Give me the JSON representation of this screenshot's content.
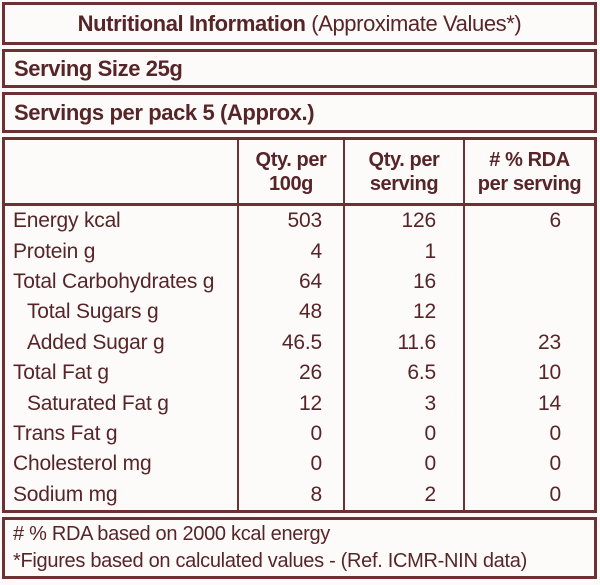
{
  "title": {
    "bold": "Nutritional Information",
    "normal": " (Approximate Values*)"
  },
  "serving_size": "Serving Size 25g",
  "servings_per_pack": "Servings per pack 5 (Approx.)",
  "table": {
    "col_headers": [
      {
        "line1": "Qty. per",
        "line2": "100g"
      },
      {
        "line1": "Qty. per",
        "line2": "serving"
      },
      {
        "line1": "# % RDA",
        "line2": "per serving"
      }
    ],
    "rows": [
      {
        "name": "Energy kcal",
        "indent": false,
        "per100g": "503",
        "per_serving": "126",
        "rda": "6"
      },
      {
        "name": "Protein g",
        "indent": false,
        "per100g": "4",
        "per_serving": "1",
        "rda": ""
      },
      {
        "name": "Total Carbohydrates g",
        "indent": false,
        "per100g": "64",
        "per_serving": "16",
        "rda": ""
      },
      {
        "name": "Total Sugars g",
        "indent": true,
        "per100g": "48",
        "per_serving": "12",
        "rda": ""
      },
      {
        "name": "Added Sugar g",
        "indent": true,
        "per100g": "46.5",
        "per_serving": "11.6",
        "rda": "23"
      },
      {
        "name": "Total Fat g",
        "indent": false,
        "per100g": "26",
        "per_serving": "6.5",
        "rda": "10"
      },
      {
        "name": "Saturated Fat g",
        "indent": true,
        "per100g": "12",
        "per_serving": "3",
        "rda": "14"
      },
      {
        "name": "Trans Fat g",
        "indent": false,
        "per100g": "0",
        "per_serving": "0",
        "rda": "0"
      },
      {
        "name": "Cholesterol mg",
        "indent": false,
        "per100g": "0",
        "per_serving": "0",
        "rda": "0"
      },
      {
        "name": "Sodium mg",
        "indent": false,
        "per100g": "8",
        "per_serving": "2",
        "rda": "0"
      }
    ]
  },
  "footnotes": [
    "# % RDA based on 2000 kcal energy",
    "*Figures based on calculated values - (Ref. ICMR-NIN data)"
  ],
  "colors": {
    "text": "#572528",
    "border": "#6e3133",
    "background": "#fdfbfa"
  }
}
